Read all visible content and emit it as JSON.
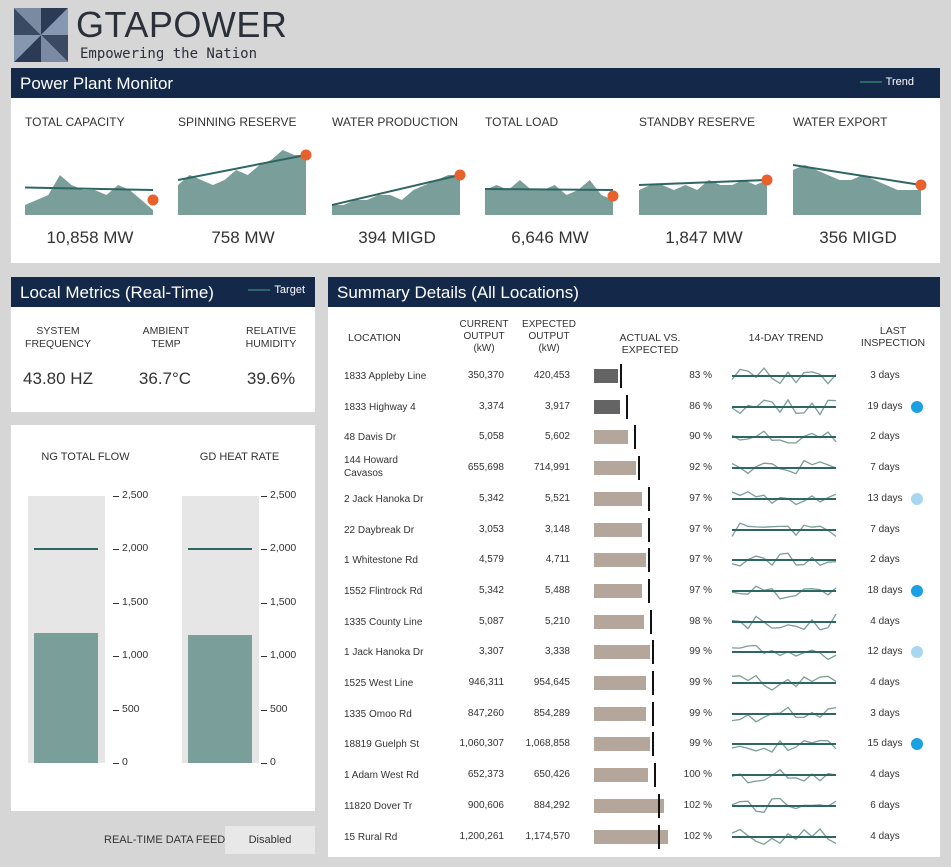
{
  "brand": {
    "name": "GTAPOWER",
    "tagline": "Empowering the Nation"
  },
  "colors": {
    "header_bg": "#14294a",
    "trend_line": "#2e6663",
    "area_fill": "#7a9e99",
    "endpoint": "#e8602c",
    "bar_low": "#646464",
    "bar_ok": "#b5a69c",
    "dot_dark": "#1ba1e2",
    "dot_light": "#a8d8ef"
  },
  "monitor": {
    "title": "Power Plant Monitor",
    "legend": "Trend",
    "kpis": [
      {
        "title": "TOTAL CAPACITY",
        "value": "10,858 MW",
        "series": [
          2,
          3,
          4,
          8,
          6,
          5,
          5,
          4,
          6,
          5,
          3,
          1
        ],
        "trend": [
          5.5,
          5.0
        ]
      },
      {
        "title": "SPINNING RESERVE",
        "value": "758 MW",
        "series": [
          6,
          8,
          7,
          6,
          7,
          9,
          8,
          10,
          11,
          13,
          12,
          12
        ],
        "trend": [
          7,
          12
        ]
      },
      {
        "title": "WATER PRODUCTION",
        "value": "394 MIGD",
        "series": [
          2,
          2,
          3,
          3,
          4,
          4,
          3,
          5,
          6,
          7,
          8,
          8
        ],
        "trend": [
          2,
          8
        ]
      },
      {
        "title": "TOTAL LOAD",
        "value": "6,646 MW",
        "series": [
          5,
          6,
          5,
          7,
          5,
          5,
          6,
          4,
          5,
          7,
          4,
          3
        ],
        "trend": [
          5.2,
          5.0
        ]
      },
      {
        "title": "STANDBY RESERVE",
        "value": "1,847 MW",
        "series": [
          5,
          6,
          6,
          5,
          6,
          5,
          7,
          6,
          6,
          7,
          6,
          7
        ],
        "trend": [
          6,
          7
        ]
      },
      {
        "title": "WATER EXPORT",
        "value": "356 MIGD",
        "series": [
          9,
          10,
          9,
          8,
          7,
          7,
          8,
          7,
          6,
          5,
          5,
          5
        ],
        "trend": [
          10,
          6
        ]
      }
    ]
  },
  "local_metrics": {
    "title": "Local Metrics (Real-Time)",
    "legend": "Target",
    "items": [
      {
        "label_1": "SYSTEM",
        "label_2": "FREQUENCY",
        "value": "43.80 HZ"
      },
      {
        "label_1": "AMBIENT",
        "label_2": "TEMP",
        "value": "36.7°C"
      },
      {
        "label_1": "RELATIVE",
        "label_2": "HUMIDITY",
        "value": "39.6%"
      }
    ]
  },
  "gauges": {
    "ticks": [
      "2,500",
      "2,000",
      "1,500",
      "1,000",
      "500",
      "0"
    ],
    "items": [
      {
        "title": "NG TOTAL FLOW",
        "value": 1220,
        "target": 2000
      },
      {
        "title": "GD HEAT RATE",
        "value": 1200,
        "target": 2000
      }
    ]
  },
  "feed": {
    "label": "REAL-TIME DATA FEED",
    "value": "Disabled"
  },
  "summary": {
    "title": "Summary Details (All Locations)",
    "headers": {
      "location": "LOCATION",
      "current_1": "CURRENT",
      "current_2": "OUTPUT",
      "current_3": "(kW)",
      "expected_1": "EXPECTED",
      "expected_2": "OUTPUT",
      "expected_3": "(kW)",
      "actual": "ACTUAL VS. EXPECTED",
      "trend": "14-DAY TREND",
      "last_1": "LAST",
      "last_2": "INSPECTION"
    },
    "rows": [
      {
        "location": "1833 Appleby Line",
        "current": "350,370",
        "expected": "420,453",
        "pct": "83 %",
        "ratio": 0.83,
        "inspection": "3 days",
        "dot": ""
      },
      {
        "location": "1833 Highway 4",
        "current": "3,374",
        "expected": "3,917",
        "pct": "86 %",
        "ratio": 0.86,
        "inspection": "19 days",
        "dot": "dark"
      },
      {
        "location": "48 Davis Dr",
        "current": "5,058",
        "expected": "5,602",
        "pct": "90 %",
        "ratio": 0.9,
        "inspection": "2 days",
        "dot": ""
      },
      {
        "location": "144 Howard Cavasos",
        "current": "655,698",
        "expected": "714,991",
        "pct": "92 %",
        "ratio": 0.92,
        "inspection": "7 days",
        "dot": ""
      },
      {
        "location": "2 Jack Hanoka Dr",
        "current": "5,342",
        "expected": "5,521",
        "pct": "97 %",
        "ratio": 0.97,
        "inspection": "13 days",
        "dot": "light"
      },
      {
        "location": "22 Daybreak Dr",
        "current": "3,053",
        "expected": "3,148",
        "pct": "97 %",
        "ratio": 0.97,
        "inspection": "7 days",
        "dot": ""
      },
      {
        "location": "1 Whitestone Rd",
        "current": "4,579",
        "expected": "4,711",
        "pct": "97 %",
        "ratio": 0.97,
        "inspection": "2 days",
        "dot": ""
      },
      {
        "location": "1552 Flintrock Rd",
        "current": "5,342",
        "expected": "5,488",
        "pct": "97 %",
        "ratio": 0.97,
        "inspection": "18 days",
        "dot": "dark"
      },
      {
        "location": "1335 County Line",
        "current": "5,087",
        "expected": "5,210",
        "pct": "98 %",
        "ratio": 0.98,
        "inspection": "4 days",
        "dot": ""
      },
      {
        "location": "1 Jack Hanoka Dr",
        "current": "3,307",
        "expected": "3,338",
        "pct": "99 %",
        "ratio": 0.99,
        "inspection": "12 days",
        "dot": "light"
      },
      {
        "location": "1525 West Line",
        "current": "946,311",
        "expected": "954,645",
        "pct": "99 %",
        "ratio": 0.99,
        "inspection": "4 days",
        "dot": ""
      },
      {
        "location": "1335 Omoo Rd",
        "current": "847,260",
        "expected": "854,289",
        "pct": "99 %",
        "ratio": 0.99,
        "inspection": "3 days",
        "dot": ""
      },
      {
        "location": "18819 Guelph St",
        "current": "1,060,307",
        "expected": "1,068,858",
        "pct": "99 %",
        "ratio": 0.99,
        "inspection": "15 days",
        "dot": "dark"
      },
      {
        "location": "1 Adam West Rd",
        "current": "652,373",
        "expected": "650,426",
        "pct": "100 %",
        "ratio": 1.0,
        "inspection": "4 days",
        "dot": ""
      },
      {
        "location": "11820 Dover Tr",
        "current": "900,606",
        "expected": "884,292",
        "pct": "102 %",
        "ratio": 1.02,
        "inspection": "6 days",
        "dot": ""
      },
      {
        "location": "15 Rural Rd",
        "current": "1,200,261",
        "expected": "1,174,570",
        "pct": "102 %",
        "ratio": 1.02,
        "inspection": "4 days",
        "dot": ""
      }
    ]
  }
}
